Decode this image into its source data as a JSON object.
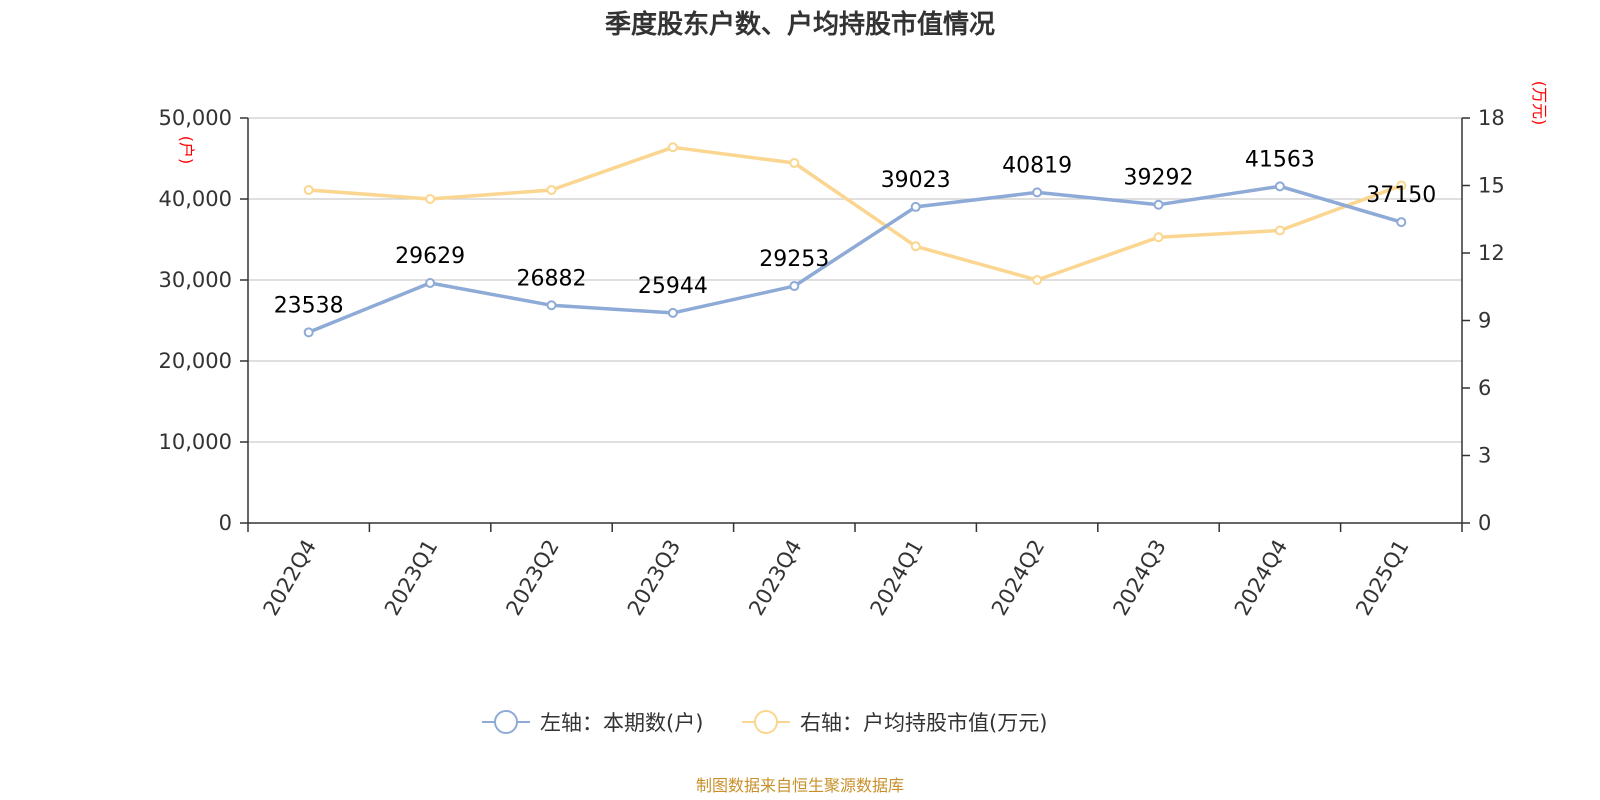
{
  "chart_data": {
    "type": "line",
    "title": "季度股东户数、户均持股市值情况",
    "categories": [
      "2022Q4",
      "2023Q1",
      "2023Q2",
      "2023Q3",
      "2023Q4",
      "2024Q1",
      "2024Q2",
      "2024Q3",
      "2024Q4",
      "2025Q1"
    ],
    "y_left": {
      "unit": "(户)",
      "range": [
        0,
        50000
      ],
      "ticks": [
        0,
        10000,
        20000,
        30000,
        40000,
        50000
      ],
      "tick_labels": [
        "0",
        "10,000",
        "20,000",
        "30,000",
        "40,000",
        "50,000"
      ]
    },
    "y_right": {
      "unit": "(万元)",
      "range": [
        0,
        18
      ],
      "ticks": [
        0,
        3,
        6,
        9,
        12,
        15,
        18
      ],
      "tick_labels": [
        "0",
        "3",
        "6",
        "9",
        "12",
        "15",
        "18"
      ]
    },
    "series": [
      {
        "name": "左轴：本期数(户)",
        "axis": "left",
        "color": "#8eaad6",
        "values": [
          23538,
          29629,
          26882,
          25944,
          29253,
          39023,
          40819,
          39292,
          41563,
          37150
        ],
        "data_labels": [
          "23538",
          "29629",
          "26882",
          "25944",
          "29253",
          "39023",
          "40819",
          "39292",
          "41563",
          "37150"
        ]
      },
      {
        "name": "右轴：户均持股市值(万元)",
        "axis": "right",
        "color": "#fad690",
        "values": [
          14.8,
          14.4,
          14.8,
          16.7,
          16.0,
          12.3,
          10.8,
          12.7,
          13.0,
          15.0
        ]
      }
    ],
    "grid": true,
    "legend_position": "bottom-center"
  },
  "source_note": "制图数据来自恒生聚源数据库"
}
